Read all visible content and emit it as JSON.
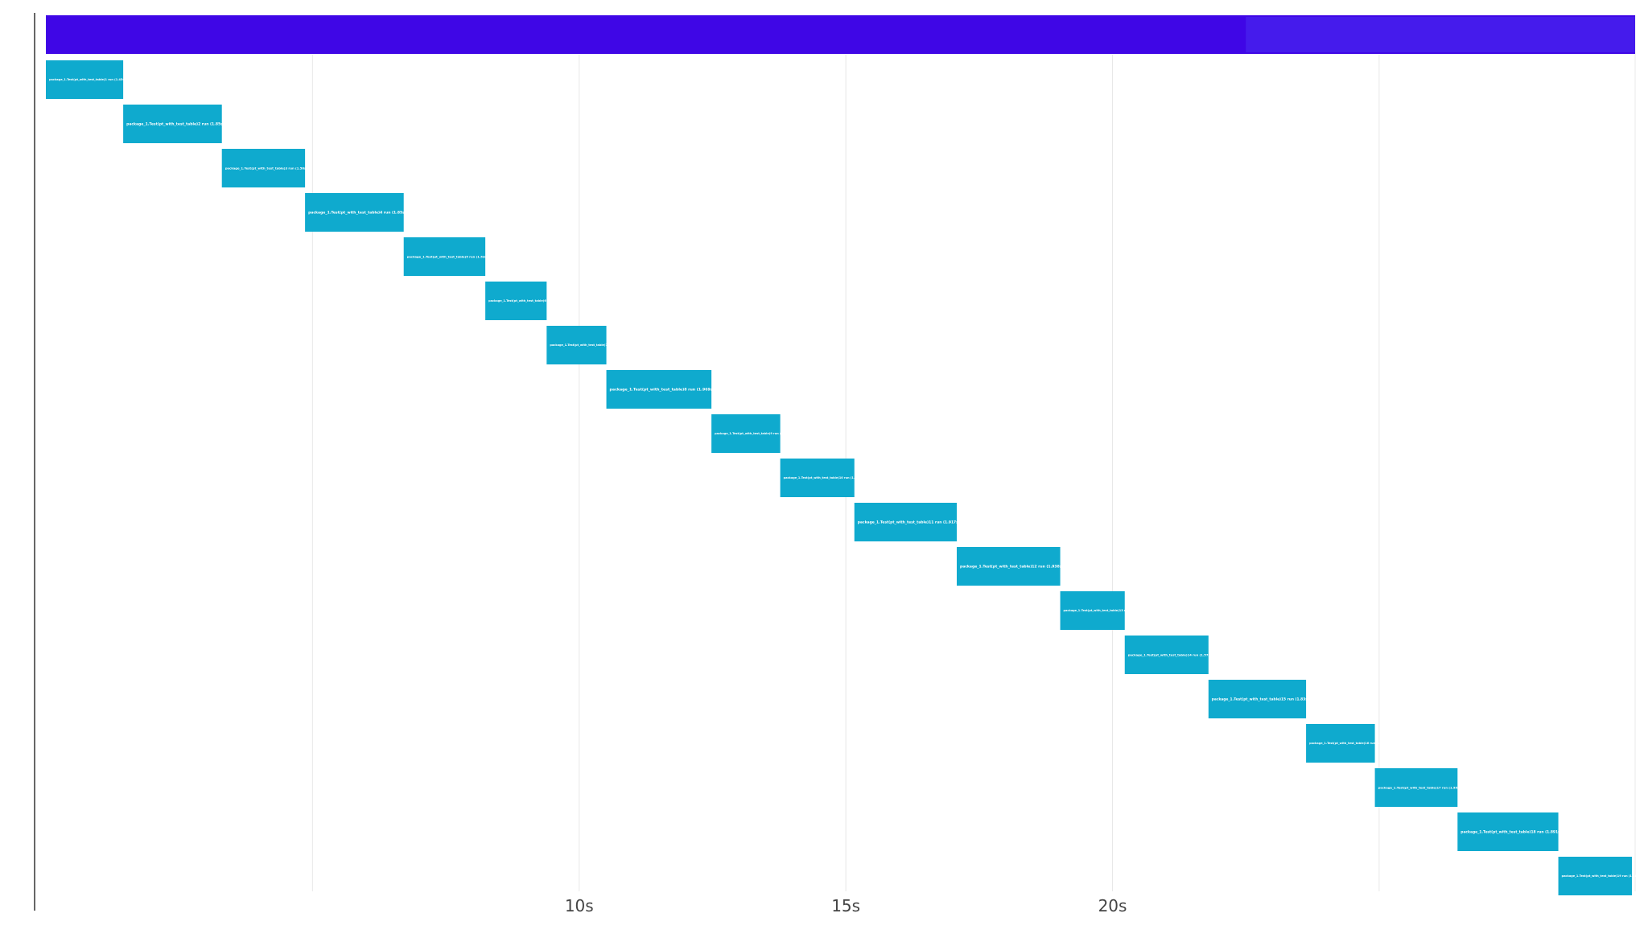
{
  "chart_data": {
    "type": "bar",
    "subtype": "gantt-waterfall",
    "title": "",
    "xlabel": "",
    "ylabel": "",
    "xlim": [
      0,
      29.8
    ],
    "x_tick_values": [
      5,
      10,
      15,
      20,
      25
    ],
    "x_tick_labels": [
      "",
      "10s",
      "15s",
      "20s",
      ""
    ],
    "grid": true,
    "legend": "none",
    "colors": {
      "total_bar": "#3F06E6",
      "total_bar_highlight": "#4A2EF0",
      "span_bar": "#0FAACE",
      "span_text": "#FFFFFF",
      "grid": "#E8E8E8",
      "axis": "#333333",
      "tick_text": "#444444"
    },
    "total": {
      "start": 0,
      "end": 29.8,
      "label": ""
    },
    "spans": [
      {
        "label": "package_1.Test(pt_with_test_table)1 run (1.45s)",
        "start": 0.0,
        "end": 1.45
      },
      {
        "label": "package_1.Test(pt_with_test_table)2 run (1.85s)",
        "start": 1.45,
        "end": 3.3
      },
      {
        "label": "package_1.Test(pt_with_test_table)3 run (1.56s)",
        "start": 3.3,
        "end": 4.86
      },
      {
        "label": "package_1.Test(pt_with_test_table)4 run (1.85s)",
        "start": 4.86,
        "end": 6.71
      },
      {
        "label": "package_1.Test(pt_with_test_table)5 run (1.53s)",
        "start": 6.71,
        "end": 8.24
      },
      {
        "label": "package_1.Test(pt_with_test_table)6 run (1.15s)",
        "start": 8.24,
        "end": 9.39
      },
      {
        "label": "package_1.Test(pt_with_test_table)7 run (1.12s)",
        "start": 9.39,
        "end": 10.51
      },
      {
        "label": "package_1.Test(pt_with_test_table)8 run (1.969s)",
        "start": 10.51,
        "end": 12.48
      },
      {
        "label": "package_1.Test(pt_with_test_table)9 run (1.29s)",
        "start": 12.48,
        "end": 13.77
      },
      {
        "label": "package_1.Test(pt_with_test_table)10 run (1.39s)",
        "start": 13.77,
        "end": 15.16
      },
      {
        "label": "package_1.Test(pt_with_test_table)11 run (1.917s)",
        "start": 15.16,
        "end": 17.08
      },
      {
        "label": "package_1.Test(pt_with_test_table)12 run (1.938s)",
        "start": 17.08,
        "end": 19.02
      },
      {
        "label": "package_1.Test(pt_with_test_table)13 run (1.21s)",
        "start": 19.02,
        "end": 20.23
      },
      {
        "label": "package_1.Test(pt_with_test_table)14 run (1.57s)",
        "start": 20.23,
        "end": 21.8
      },
      {
        "label": "package_1.Test(pt_with_test_table)15 run (1.83s)",
        "start": 21.8,
        "end": 23.63
      },
      {
        "label": "package_1.Test(pt_with_test_table)16 run (1.29s)",
        "start": 23.63,
        "end": 24.92
      },
      {
        "label": "package_1.Test(pt_with_test_table)17 run (1.55s)",
        "start": 24.92,
        "end": 26.47
      },
      {
        "label": "package_1.Test(pt_with_test_table)18 run (1.891s)",
        "start": 26.47,
        "end": 28.36
      },
      {
        "label": "package_1.Test(pt_with_test_table)19 run (1.38s)",
        "start": 28.36,
        "end": 29.74
      }
    ]
  }
}
